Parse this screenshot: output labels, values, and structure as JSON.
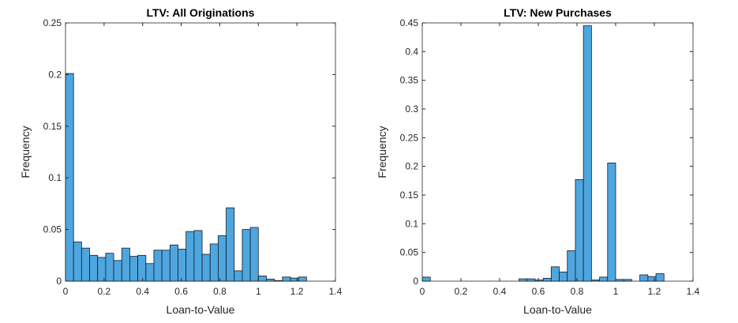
{
  "chart_data": [
    {
      "type": "bar",
      "title": "LTV: All Originations",
      "xlabel": "Loan-to-Value",
      "ylabel": "Frequency",
      "xlim": [
        0,
        1.4
      ],
      "ylim": [
        0,
        0.25
      ],
      "bin_width": 0.0417,
      "xticks": [
        "0",
        "0.2",
        "0.4",
        "0.6",
        "0.8",
        "1",
        "1.2",
        "1.4"
      ],
      "yticks": [
        "0",
        "0.05",
        "0.1",
        "0.15",
        "0.2",
        "0.25"
      ],
      "bin_starts": [
        0,
        0.0417,
        0.0833,
        0.125,
        0.1667,
        0.2083,
        0.25,
        0.2917,
        0.3333,
        0.375,
        0.4167,
        0.4583,
        0.5,
        0.5417,
        0.5833,
        0.625,
        0.6667,
        0.7083,
        0.75,
        0.7917,
        0.8333,
        0.875,
        0.9167,
        0.9583,
        1.0,
        1.0417,
        1.0833,
        1.125,
        1.1667,
        1.2083
      ],
      "values": [
        0.201,
        0.038,
        0.032,
        0.025,
        0.023,
        0.027,
        0.02,
        0.032,
        0.024,
        0.025,
        0.017,
        0.03,
        0.03,
        0.035,
        0.031,
        0.048,
        0.049,
        0.026,
        0.036,
        0.044,
        0.071,
        0.01,
        0.05,
        0.052,
        0.005,
        0.002,
        0.0005,
        0.004,
        0.003,
        0.004
      ]
    },
    {
      "type": "bar",
      "title": "LTV: New Purchases",
      "xlabel": "Loan-to-Value",
      "ylabel": "Frequency",
      "xlim": [
        0,
        1.4
      ],
      "ylim": [
        0,
        0.45
      ],
      "bin_width": 0.0417,
      "xticks": [
        "0",
        "0.2",
        "0.4",
        "0.6",
        "0.8",
        "1",
        "1.2",
        "1.4"
      ],
      "yticks": [
        "0",
        "0.05",
        "0.1",
        "0.15",
        "0.2",
        "0.25",
        "0.3",
        "0.35",
        "0.4",
        "0.45"
      ],
      "bin_starts": [
        0,
        0.5,
        0.5417,
        0.5833,
        0.625,
        0.6667,
        0.7083,
        0.75,
        0.7917,
        0.8333,
        0.875,
        0.9167,
        0.9583,
        1.0,
        1.0417,
        1.0833,
        1.125,
        1.1667,
        1.2083
      ],
      "values": [
        0.007,
        0.004,
        0.004,
        0.002,
        0.005,
        0.025,
        0.016,
        0.053,
        0.177,
        0.445,
        0.002,
        0.007,
        0.206,
        0.003,
        0.003,
        0,
        0.011,
        0.008,
        0.013
      ]
    }
  ],
  "colors": {
    "bar": "#4da6e0",
    "edge": "#1a1a1a"
  }
}
